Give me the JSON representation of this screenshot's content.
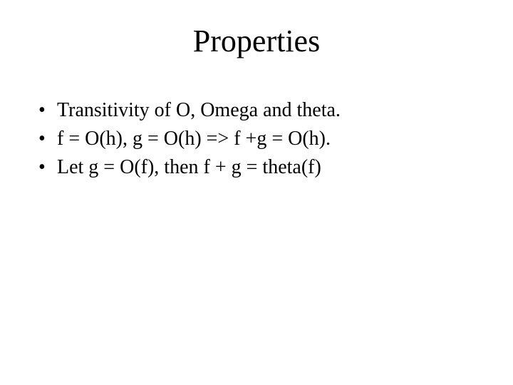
{
  "slide": {
    "title": "Properties",
    "title_fontsize": 44,
    "body_fontsize": 28,
    "text_color": "#000000",
    "background_color": "#ffffff",
    "font_family": "Times New Roman",
    "bullets": [
      {
        "marker": "•",
        "text": "Transitivity of  O, Omega and theta."
      },
      {
        "marker": "•",
        "text": "f = O(h), g = O(h) => f +g = O(h)."
      },
      {
        "marker": "•",
        "text": "Let g = O(f), then f + g = theta(f)"
      }
    ]
  }
}
